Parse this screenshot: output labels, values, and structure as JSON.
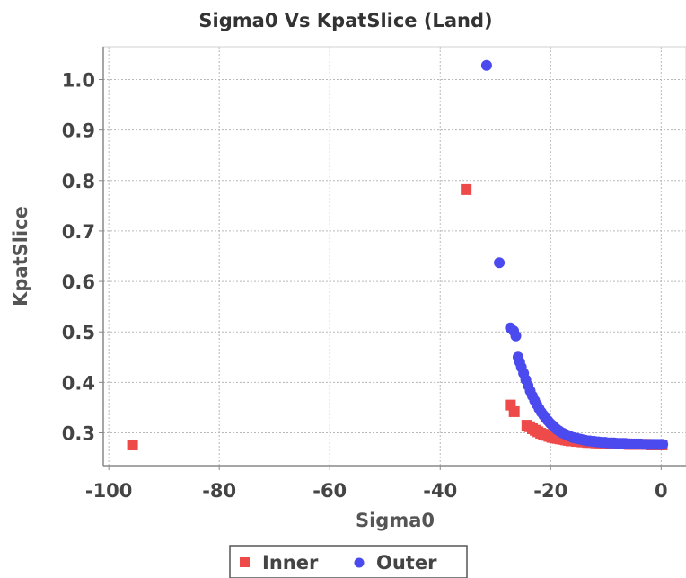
{
  "chart_data": {
    "type": "scatter",
    "title": "Sigma0 Vs KpatSlice (Land)",
    "xlabel": "Sigma0",
    "ylabel": "KpatSlice",
    "xlim": [
      -101,
      4.5
    ],
    "ylim": [
      0.235,
      1.065
    ],
    "xticks": [
      -100,
      -80,
      -60,
      -40,
      -20,
      0
    ],
    "yticks": [
      0.3,
      0.4,
      0.5,
      0.6,
      0.7,
      0.8,
      0.9,
      1.0
    ],
    "ytick_labels": [
      "0.3",
      "0.4",
      "0.5",
      "0.6",
      "0.7",
      "0.8",
      "0.9",
      "1.0"
    ],
    "grid": true,
    "legend": "bottom",
    "series": [
      {
        "name": "Inner",
        "color": "#ee4a4a",
        "marker": "square",
        "points": [
          [
            -95.7,
            0.276
          ],
          [
            -35.3,
            0.782
          ],
          [
            -27.3,
            0.355
          ],
          [
            -26.6,
            0.342
          ],
          [
            -24.3,
            0.315
          ],
          [
            -23.8,
            0.312
          ],
          [
            -23.3,
            0.308
          ],
          [
            -22.8,
            0.305
          ],
          [
            -22.3,
            0.302
          ],
          [
            -21.8,
            0.299
          ],
          [
            -21.3,
            0.297
          ],
          [
            -20.8,
            0.295
          ],
          [
            -20.3,
            0.293
          ],
          [
            -19.8,
            0.291
          ],
          [
            -19.3,
            0.29
          ],
          [
            -18.8,
            0.289
          ],
          [
            -18.3,
            0.288
          ],
          [
            -17.8,
            0.287
          ],
          [
            -17.3,
            0.286
          ],
          [
            -16.8,
            0.285
          ],
          [
            -16.3,
            0.284
          ],
          [
            -15.8,
            0.284
          ],
          [
            -15.3,
            0.283
          ],
          [
            -14.8,
            0.283
          ],
          [
            -14.3,
            0.282
          ],
          [
            -13.8,
            0.282
          ],
          [
            -13.3,
            0.281
          ],
          [
            -12.8,
            0.281
          ],
          [
            -12.3,
            0.281
          ],
          [
            -11.8,
            0.28
          ],
          [
            -11.3,
            0.28
          ],
          [
            -10.8,
            0.28
          ],
          [
            -10.3,
            0.279
          ],
          [
            -9.8,
            0.279
          ],
          [
            -9.3,
            0.279
          ],
          [
            -8.8,
            0.279
          ],
          [
            -8.3,
            0.278
          ],
          [
            -7.8,
            0.278
          ],
          [
            -7.3,
            0.278
          ],
          [
            -6.8,
            0.278
          ],
          [
            -6.3,
            0.278
          ],
          [
            -5.8,
            0.277
          ],
          [
            -5.3,
            0.277
          ],
          [
            -4.8,
            0.277
          ],
          [
            -4.3,
            0.277
          ],
          [
            -3.8,
            0.277
          ],
          [
            -3.3,
            0.277
          ],
          [
            -2.8,
            0.277
          ],
          [
            -2.3,
            0.277
          ],
          [
            -1.8,
            0.276
          ],
          [
            -1.3,
            0.276
          ],
          [
            -0.8,
            0.276
          ],
          [
            -0.3,
            0.276
          ],
          [
            0.2,
            0.276
          ]
        ]
      },
      {
        "name": "Outer",
        "color": "#4a4aee",
        "marker": "circle",
        "points": [
          [
            -31.6,
            1.028
          ],
          [
            -29.3,
            0.637
          ],
          [
            -27.3,
            0.508
          ],
          [
            -26.7,
            0.502
          ],
          [
            -26.3,
            0.492
          ],
          [
            -25.9,
            0.45
          ],
          [
            -25.6,
            0.44
          ],
          [
            -25.3,
            0.43
          ],
          [
            -24.9,
            0.418
          ],
          [
            -24.5,
            0.405
          ],
          [
            -24.1,
            0.394
          ],
          [
            -23.7,
            0.383
          ],
          [
            -23.3,
            0.373
          ],
          [
            -22.9,
            0.364
          ],
          [
            -22.5,
            0.356
          ],
          [
            -22.1,
            0.348
          ],
          [
            -21.7,
            0.341
          ],
          [
            -21.3,
            0.335
          ],
          [
            -20.9,
            0.329
          ],
          [
            -20.5,
            0.324
          ],
          [
            -20.1,
            0.319
          ],
          [
            -19.7,
            0.315
          ],
          [
            -19.3,
            0.311
          ],
          [
            -18.9,
            0.307
          ],
          [
            -18.5,
            0.304
          ],
          [
            -18.1,
            0.301
          ],
          [
            -17.7,
            0.299
          ],
          [
            -17.3,
            0.297
          ],
          [
            -16.9,
            0.295
          ],
          [
            -16.5,
            0.293
          ],
          [
            -16.1,
            0.291
          ],
          [
            -15.7,
            0.29
          ],
          [
            -15.3,
            0.289
          ],
          [
            -14.9,
            0.288
          ],
          [
            -14.5,
            0.287
          ],
          [
            -14.1,
            0.286
          ],
          [
            -13.7,
            0.285
          ],
          [
            -13.3,
            0.284
          ],
          [
            -12.9,
            0.284
          ],
          [
            -12.5,
            0.283
          ],
          [
            -12.1,
            0.283
          ],
          [
            -11.7,
            0.282
          ],
          [
            -11.3,
            0.282
          ],
          [
            -10.9,
            0.281
          ],
          [
            -10.5,
            0.281
          ],
          [
            -10.1,
            0.281
          ],
          [
            -9.7,
            0.28
          ],
          [
            -9.3,
            0.28
          ],
          [
            -8.9,
            0.28
          ],
          [
            -8.5,
            0.28
          ],
          [
            -8.1,
            0.279
          ],
          [
            -7.7,
            0.279
          ],
          [
            -7.3,
            0.279
          ],
          [
            -6.9,
            0.279
          ],
          [
            -6.5,
            0.279
          ],
          [
            -6.1,
            0.278
          ],
          [
            -5.7,
            0.278
          ],
          [
            -5.3,
            0.278
          ],
          [
            -4.9,
            0.278
          ],
          [
            -4.5,
            0.278
          ],
          [
            -4.1,
            0.278
          ],
          [
            -3.7,
            0.278
          ],
          [
            -3.3,
            0.277
          ],
          [
            -2.9,
            0.277
          ],
          [
            -2.5,
            0.277
          ],
          [
            -2.1,
            0.277
          ],
          [
            -1.7,
            0.277
          ],
          [
            -1.3,
            0.277
          ],
          [
            -0.9,
            0.277
          ],
          [
            -0.5,
            0.277
          ],
          [
            -0.1,
            0.277
          ],
          [
            0.3,
            0.277
          ]
        ]
      }
    ]
  }
}
